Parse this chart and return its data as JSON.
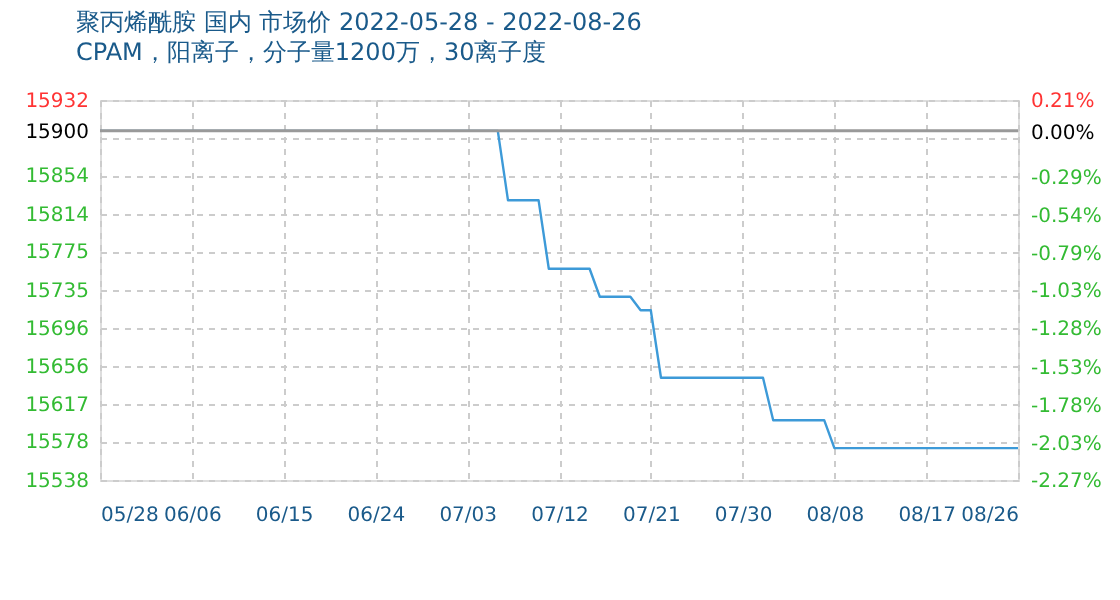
{
  "chart_data": {
    "type": "line",
    "title": "聚丙烯酰胺 国内 市场价 2022-05-28 - 2022-08-26",
    "subtitle": "CPAM，阳离子，分子量1200万，30离子度",
    "x": [
      "2022-05-28",
      "2022-07-06",
      "2022-07-07",
      "2022-07-10",
      "2022-07-11",
      "2022-07-15",
      "2022-07-16",
      "2022-07-19",
      "2022-07-20",
      "2022-07-21",
      "2022-07-22",
      "2022-08-01",
      "2022-08-02",
      "2022-08-07",
      "2022-08-08",
      "2022-08-26"
    ],
    "series": [
      {
        "color": "#3d9ad8",
        "values": [
          15900,
          15900,
          15828,
          15828,
          15757,
          15757,
          15728,
          15728,
          15714,
          15714,
          15644,
          15644,
          15600,
          15600,
          15571,
          15571
        ]
      }
    ],
    "xlim": [
      "2022-05-28",
      "2022-08-26"
    ],
    "xticks": [
      {
        "value": "2022-05-28",
        "label": "05/28"
      },
      {
        "value": "2022-06-06",
        "label": "06/06"
      },
      {
        "value": "2022-06-15",
        "label": "06/15"
      },
      {
        "value": "2022-06-24",
        "label": "06/24"
      },
      {
        "value": "2022-07-03",
        "label": "07/03"
      },
      {
        "value": "2022-07-12",
        "label": "07/12"
      },
      {
        "value": "2022-07-21",
        "label": "07/21"
      },
      {
        "value": "2022-07-30",
        "label": "07/30"
      },
      {
        "value": "2022-08-08",
        "label": "08/08"
      },
      {
        "value": "2022-08-17",
        "label": "08/17"
      },
      {
        "value": "2022-08-26",
        "label": "08/26"
      }
    ],
    "ylim": [
      15538,
      15932
    ],
    "yticks": [
      15932,
      15900,
      {
        "value": 15893,
        "label": null
      },
      15854,
      15814,
      15775,
      15735,
      15696,
      15656,
      15617,
      15578,
      15538
    ],
    "y2lim": [
      -2.27,
      0.21
    ],
    "y2ticks": [
      {
        "value": 0.21,
        "label": "0.21%"
      },
      {
        "value": 0,
        "label": "0.00%"
      },
      {
        "value": -0.29,
        "label": "-0.29%"
      },
      {
        "value": -0.54,
        "label": "-0.54%"
      },
      {
        "value": -0.79,
        "label": "-0.79%"
      },
      {
        "value": -1.03,
        "label": "-1.03%"
      },
      {
        "value": -1.28,
        "label": "-1.28%"
      },
      {
        "value": -1.53,
        "label": "-1.53%"
      },
      {
        "value": -1.78,
        "label": "-1.78%"
      },
      {
        "value": -2.03,
        "label": "-2.03%"
      },
      {
        "value": -2.27,
        "label": "-2.27%"
      }
    ],
    "ref_lines": [
      {
        "axis": "y",
        "value": 15900,
        "color": "#999999"
      }
    ],
    "grid": true,
    "legend": false,
    "marker": "none",
    "line_style": "solid"
  }
}
